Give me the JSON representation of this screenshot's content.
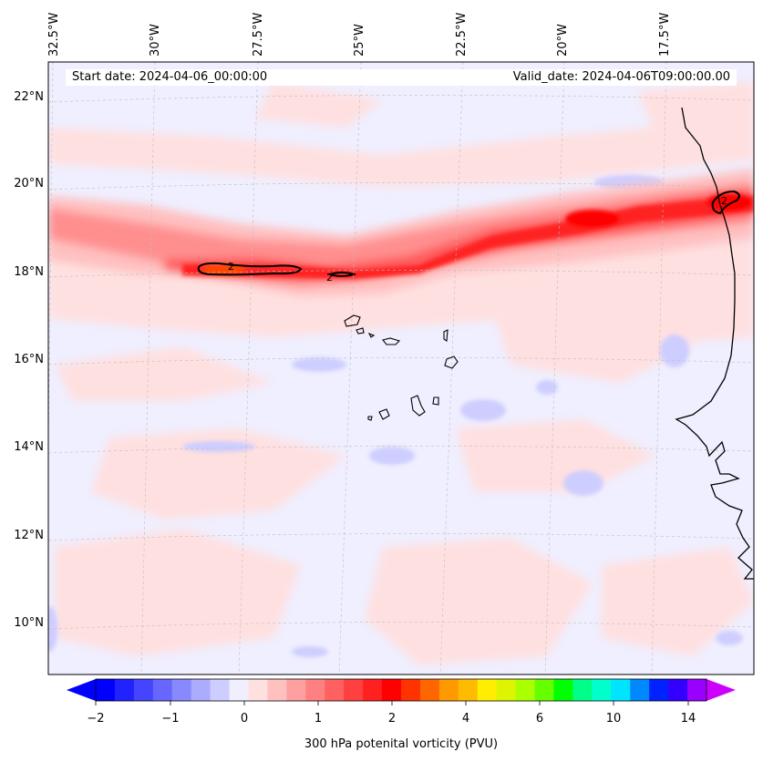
{
  "map": {
    "title_left": "Start date: 2024-04-06_00:00:00",
    "title_right": "Valid_date: 2024-04-06T09:00:00.00",
    "lon_labels": [
      "32.5°W",
      "30°W",
      "27.5°W",
      "25°W",
      "22.5°W",
      "20°W",
      "17.5°W"
    ],
    "lat_labels": [
      "22°N",
      "20°N",
      "18°N",
      "16°N",
      "14°N",
      "12°N",
      "10°N"
    ],
    "contour_labels": [
      "2",
      "2",
      "2"
    ],
    "features": [
      "Cabo Verde islands",
      "West African coastline (Senegal, Gambia, Guinea-Bissau)"
    ],
    "colors": {
      "neg_strong": "#0000ff",
      "neg_weak": "#efefff",
      "pos_weak": "#ffe0e0",
      "pos_mid": "#ff6a6a",
      "pos_strong": "#ff0000",
      "peak": "#ff4500",
      "background": "#efefff"
    }
  },
  "colorbar": {
    "title": "300 hPa potenital vorticity (PVU)",
    "tick_labels": [
      "−2",
      "−1",
      "0",
      "1",
      "2",
      "4",
      "6",
      "10",
      "14"
    ],
    "colors": [
      "#0000ff",
      "#2222ff",
      "#4545ff",
      "#6767ff",
      "#8989ff",
      "#acacff",
      "#cecdff",
      "#efefff",
      "#ffe0e0",
      "#ffc0c0",
      "#ffa0a0",
      "#ff8080",
      "#ff6060",
      "#ff4040",
      "#ff2020",
      "#ff0000",
      "#ff3300",
      "#ff6600",
      "#ff9900",
      "#ffbb00",
      "#ffee00",
      "#ddf500",
      "#aaff00",
      "#66ff00",
      "#00ff00",
      "#00ff88",
      "#00ffcc",
      "#00e5ff",
      "#0088ff",
      "#0022ff",
      "#3300ff",
      "#9900ff"
    ],
    "extend_low_color": "#0000ff",
    "extend_high_color": "#cc00ff"
  }
}
